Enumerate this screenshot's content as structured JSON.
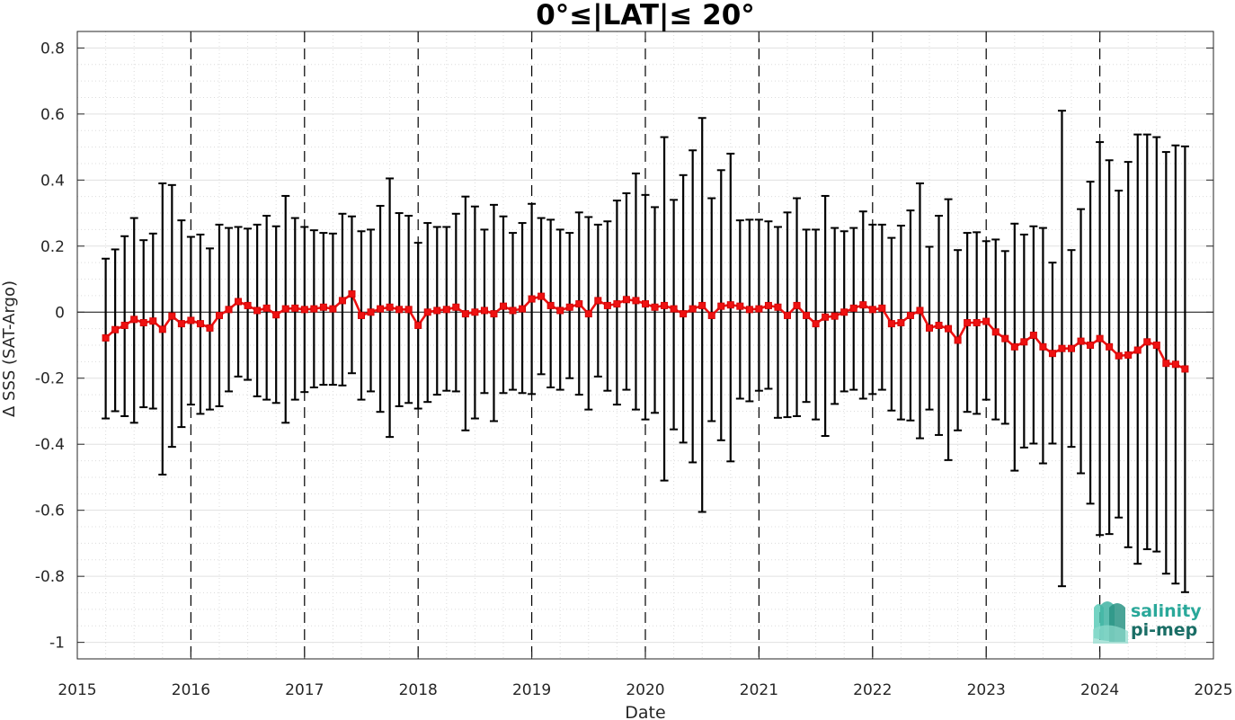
{
  "chart_data": {
    "type": "line",
    "title": "0°≤|LAT|≤ 20°",
    "xlabel": "Date",
    "ylabel": "Δ SSS (SAT-Argo)",
    "xlim": [
      2015,
      2025
    ],
    "ylim": [
      -1.05,
      0.85
    ],
    "xticks": [
      "2015",
      "2016",
      "2017",
      "2018",
      "2019",
      "2020",
      "2021",
      "2022",
      "2023",
      "2024",
      "2025"
    ],
    "yticks": [
      "0.8",
      "0.6",
      "0.4",
      "0.2",
      "0",
      "-0.2",
      "-0.4",
      "-0.6",
      "-0.8",
      "-1"
    ],
    "ytick_values": [
      0.8,
      0.6,
      0.4,
      0.2,
      0,
      -0.2,
      -0.4,
      -0.6,
      -0.8,
      -1
    ],
    "grid": true,
    "line_color": "#ee1111",
    "errorbar_color": "#000000",
    "logo": {
      "line1": "salinity",
      "line2": "pi-mep",
      "color1": "#2aa89a",
      "color2": "#1a6e66"
    },
    "series": [
      {
        "start_year": 2015,
        "start_month": 4,
        "values": [
          -0.078,
          -0.053,
          -0.04,
          -0.022,
          -0.032,
          -0.027,
          -0.052,
          -0.012,
          -0.035,
          -0.025,
          -0.035,
          -0.048,
          -0.01,
          0.008,
          0.032,
          0.02,
          0.005,
          0.012,
          -0.008,
          0.01,
          0.012,
          0.008,
          0.01,
          0.015,
          0.01,
          0.035,
          0.055,
          -0.01,
          0.0,
          0.01,
          0.015,
          0.008,
          0.008,
          -0.04,
          0.0,
          0.005,
          0.008,
          0.015,
          -0.005,
          0.0,
          0.005,
          -0.005,
          0.018,
          0.005,
          0.01,
          0.04,
          0.048,
          0.02,
          0.005,
          0.015,
          0.025,
          -0.005,
          0.035,
          0.02,
          0.025,
          0.038,
          0.035,
          0.025,
          0.015,
          0.02,
          0.01,
          -0.005,
          0.01,
          0.02,
          -0.01,
          0.018,
          0.022,
          0.018,
          0.008,
          0.01,
          0.02,
          0.015,
          -0.01,
          0.02,
          -0.01,
          -0.035,
          -0.015,
          -0.012,
          0.0,
          0.012,
          0.022,
          0.008,
          0.012,
          -0.035,
          -0.032,
          -0.01,
          0.005,
          -0.048,
          -0.04,
          -0.05,
          -0.085,
          -0.032,
          -0.032,
          -0.028,
          -0.06,
          -0.08,
          -0.105,
          -0.09,
          -0.07,
          -0.105,
          -0.125,
          -0.11,
          -0.11,
          -0.088,
          -0.1,
          -0.08,
          -0.105,
          -0.132,
          -0.13,
          -0.115,
          -0.09,
          -0.1,
          -0.155,
          -0.158,
          -0.172
        ],
        "upper": [
          0.162,
          0.19,
          0.23,
          0.285,
          0.218,
          0.238,
          0.39,
          0.385,
          0.278,
          0.228,
          0.235,
          0.193,
          0.265,
          0.255,
          0.258,
          0.253,
          0.265,
          0.292,
          0.26,
          0.352,
          0.285,
          0.258,
          0.248,
          0.24,
          0.238,
          0.298,
          0.29,
          0.245,
          0.25,
          0.322,
          0.405,
          0.3,
          0.292,
          0.21,
          0.27,
          0.258,
          0.258,
          0.298,
          0.35,
          0.32,
          0.25,
          0.325,
          0.29,
          0.24,
          0.27,
          0.328,
          0.285,
          0.28,
          0.25,
          0.24,
          0.302,
          0.288,
          0.265,
          0.275,
          0.338,
          0.36,
          0.42,
          0.355,
          0.318,
          0.53,
          0.34,
          0.415,
          0.49,
          0.588,
          0.345,
          0.43,
          0.48,
          0.278,
          0.28,
          0.28,
          0.275,
          0.258,
          0.302,
          0.345,
          0.25,
          0.25,
          0.352,
          0.255,
          0.245,
          0.255,
          0.305,
          0.265,
          0.265,
          0.225,
          0.262,
          0.308,
          0.39,
          0.198,
          0.292,
          0.342,
          0.188,
          0.24,
          0.242,
          0.215,
          0.22,
          0.185,
          0.268,
          0.235,
          0.26,
          0.255,
          0.15,
          0.61,
          0.188,
          0.312,
          0.395,
          0.515,
          0.46,
          0.368,
          0.455,
          0.538,
          0.538,
          0.53,
          0.485,
          0.505,
          0.502
        ],
        "lower": [
          -0.322,
          -0.3,
          -0.315,
          -0.335,
          -0.288,
          -0.292,
          -0.492,
          -0.408,
          -0.348,
          -0.28,
          -0.308,
          -0.295,
          -0.285,
          -0.24,
          -0.195,
          -0.205,
          -0.255,
          -0.265,
          -0.275,
          -0.335,
          -0.265,
          -0.242,
          -0.228,
          -0.22,
          -0.22,
          -0.222,
          -0.185,
          -0.265,
          -0.24,
          -0.302,
          -0.378,
          -0.285,
          -0.275,
          -0.292,
          -0.272,
          -0.25,
          -0.238,
          -0.24,
          -0.358,
          -0.322,
          -0.245,
          -0.33,
          -0.245,
          -0.235,
          -0.245,
          -0.248,
          -0.188,
          -0.228,
          -0.235,
          -0.2,
          -0.25,
          -0.295,
          -0.195,
          -0.238,
          -0.28,
          -0.235,
          -0.295,
          -0.325,
          -0.305,
          -0.51,
          -0.355,
          -0.395,
          -0.455,
          -0.605,
          -0.33,
          -0.388,
          -0.452,
          -0.262,
          -0.27,
          -0.238,
          -0.232,
          -0.32,
          -0.318,
          -0.315,
          -0.272,
          -0.325,
          -0.375,
          -0.278,
          -0.24,
          -0.235,
          -0.262,
          -0.248,
          -0.235,
          -0.298,
          -0.325,
          -0.328,
          -0.382,
          -0.295,
          -0.372,
          -0.448,
          -0.358,
          -0.302,
          -0.308,
          -0.265,
          -0.325,
          -0.338,
          -0.48,
          -0.41,
          -0.398,
          -0.458,
          -0.398,
          -0.83,
          -0.408,
          -0.488,
          -0.58,
          -0.675,
          -0.672,
          -0.622,
          -0.712,
          -0.762,
          -0.718,
          -0.725,
          -0.792,
          -0.822,
          -0.848
        ]
      }
    ]
  }
}
